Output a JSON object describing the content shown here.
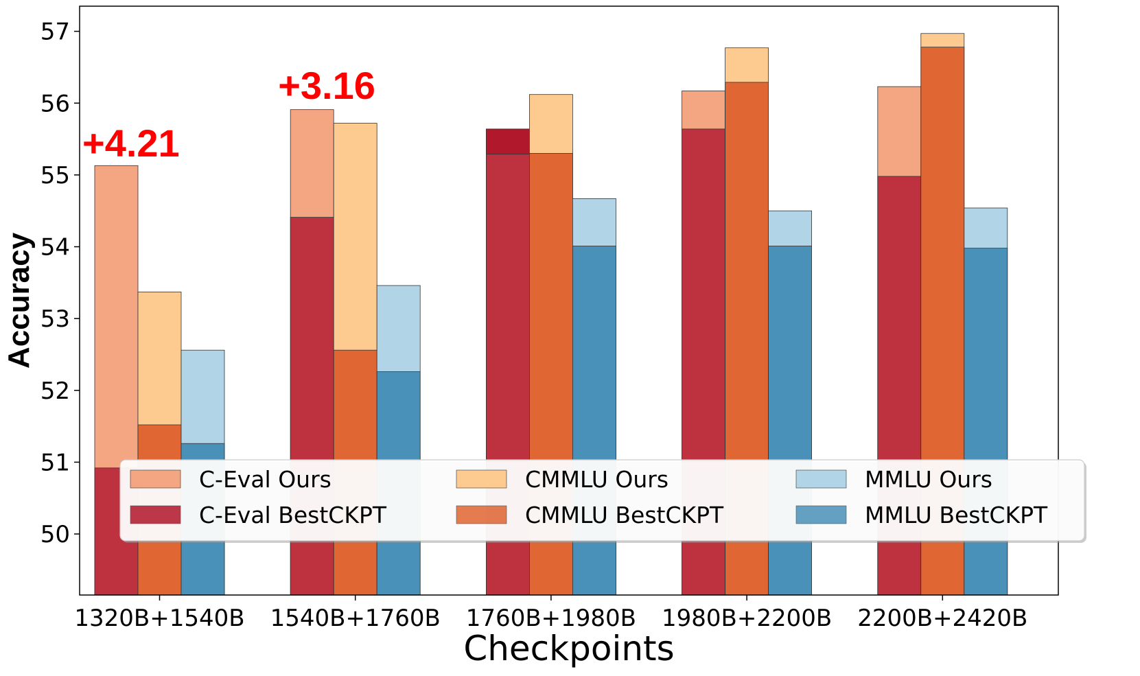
{
  "chart_data": {
    "type": "bar",
    "xlabel": "Checkpoints",
    "ylabel": "Accuracy",
    "categories": [
      "1320B+1540B",
      "1540B+1760B",
      "1760B+1980B",
      "1980B+2200B",
      "2200B+2420B"
    ],
    "ylim": [
      49.15,
      57.35
    ],
    "yticks": [
      50,
      51,
      52,
      53,
      54,
      55,
      56,
      57
    ],
    "grid": false,
    "legend_position": "lower center",
    "series": [
      {
        "name": "C-Eval Ours",
        "group": "C-Eval",
        "kind": "ours",
        "color": "#f4a582",
        "values": [
          55.13,
          55.91,
          55.29,
          56.17,
          56.23
        ]
      },
      {
        "name": "C-Eval BestCKPT",
        "group": "C-Eval",
        "kind": "best",
        "color": "#b2182b",
        "values": [
          50.92,
          54.41,
          55.64,
          55.64,
          54.98
        ]
      },
      {
        "name": "CMMLU Ours",
        "group": "CMMLU",
        "kind": "ours",
        "color": "#fdca8f",
        "values": [
          53.37,
          55.72,
          56.12,
          56.77,
          56.97
        ]
      },
      {
        "name": "CMMLU BestCKPT",
        "group": "CMMLU",
        "kind": "best",
        "color": "#e06633",
        "values": [
          51.52,
          52.56,
          55.3,
          56.29,
          56.78
        ]
      },
      {
        "name": "MMLU Ours",
        "group": "MMLU",
        "kind": "ours",
        "color": "#b1d4e6",
        "values": [
          52.56,
          53.46,
          54.67,
          54.5,
          54.54
        ]
      },
      {
        "name": "MMLU BestCKPT",
        "group": "MMLU",
        "kind": "best",
        "color": "#4a91b9",
        "values": [
          51.26,
          52.26,
          54.01,
          54.01,
          53.98
        ]
      }
    ],
    "overlap_color": "#be3240",
    "annotations": [
      {
        "text": "+4.21",
        "category_index": 0,
        "y": 55.45,
        "color": "#ff0000"
      },
      {
        "text": "+3.16",
        "category_index": 1,
        "y": 56.25,
        "color": "#ff0000"
      }
    ]
  }
}
